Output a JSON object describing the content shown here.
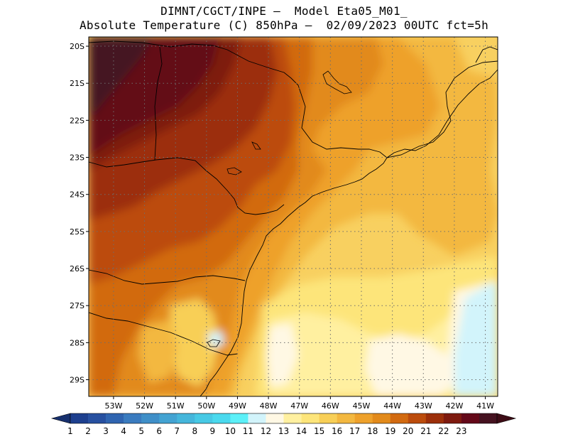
{
  "header": {
    "line1": "DIMNT/CGCT/INPE –  Model Eta05_M01_",
    "line2": "Absolute Temperature (C) 850hPa –  02/09/2023 00UTC fct=5h"
  },
  "map": {
    "lat_labels": [
      "20S",
      "21S",
      "22S",
      "23S",
      "24S",
      "25S",
      "26S",
      "27S",
      "28S",
      "29S"
    ],
    "lon_labels": [
      "53W",
      "52W",
      "51W",
      "50W",
      "49W",
      "48W",
      "47W",
      "46W",
      "45W",
      "44W",
      "43W",
      "42W",
      "41W"
    ],
    "extent": {
      "lon_min": -53.8,
      "lon_max": -40.6,
      "lat_min": -29.45,
      "lat_max": -19.75
    }
  },
  "colorbar": {
    "labels": [
      "1",
      "2",
      "3",
      "4",
      "5",
      "6",
      "7",
      "8",
      "9",
      "10",
      "11",
      "12",
      "13",
      "14",
      "15",
      "16",
      "17",
      "18",
      "19",
      "20",
      "21",
      "22",
      "23"
    ],
    "colors": [
      "#1d3f8e",
      "#2750a0",
      "#2f64b0",
      "#3a7bbf",
      "#3f8fc8",
      "#43a3d2",
      "#45b6db",
      "#47c9e5",
      "#4ad9ee",
      "#5cf0f8",
      "#d2f4fb",
      "#fff8e4",
      "#fff0a0",
      "#fde57a",
      "#f8cf57",
      "#f3b840",
      "#eea12b",
      "#e28a1b",
      "#d26a10",
      "#bc4c0c",
      "#9c2f0a",
      "#7e1a0f",
      "#640819",
      "#451220"
    ],
    "arrow_low": "#17306e",
    "arrow_high": "#3d0c16"
  }
}
